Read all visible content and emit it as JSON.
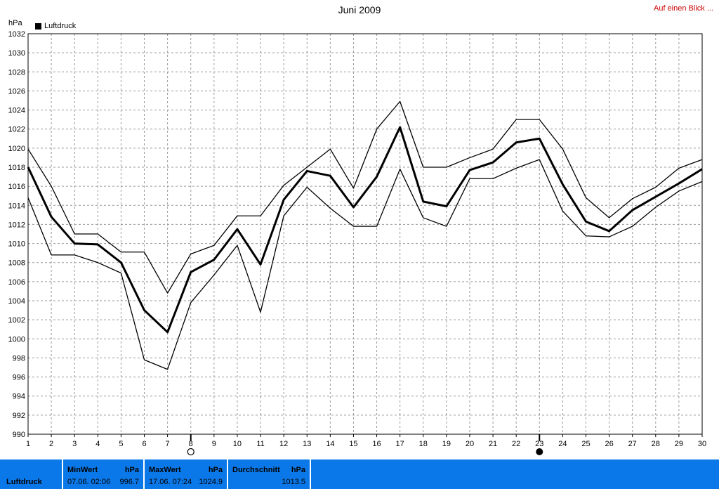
{
  "title": "Juni 2009",
  "link": "Auf einen Blick ...",
  "y_unit": "hPa",
  "legend_label": "Luftdruck",
  "chart_data": {
    "type": "line",
    "title": "Juni 2009",
    "ylabel": "hPa",
    "xlabel": "",
    "ylim": [
      990,
      1032
    ],
    "yticks": [
      990,
      992,
      994,
      996,
      998,
      1000,
      1002,
      1004,
      1006,
      1008,
      1010,
      1012,
      1014,
      1016,
      1018,
      1020,
      1022,
      1024,
      1026,
      1028,
      1030,
      1032
    ],
    "x": [
      1,
      2,
      3,
      4,
      5,
      6,
      7,
      8,
      9,
      10,
      11,
      12,
      13,
      14,
      15,
      16,
      17,
      18,
      19,
      20,
      21,
      22,
      23,
      24,
      25,
      26,
      27,
      28,
      29,
      30
    ],
    "grid": true,
    "legend": "top-left",
    "series": [
      {
        "name": "Luftdruck",
        "role": "mean",
        "values": [
          1018.0,
          1012.8,
          1010.0,
          1009.9,
          1008.0,
          1003.0,
          1000.7,
          1007.0,
          1008.3,
          1011.5,
          1007.8,
          1014.6,
          1017.6,
          1017.1,
          1013.8,
          1017.0,
          1022.2,
          1014.4,
          1013.9,
          1017.7,
          1018.5,
          1020.6,
          1021.0,
          1016.2,
          1012.3,
          1011.3,
          1013.5,
          1014.9,
          1016.3,
          1017.8
        ]
      },
      {
        "role": "max",
        "values": [
          1019.9,
          1016.0,
          1011.0,
          1011.0,
          1009.1,
          1009.1,
          1004.8,
          1008.9,
          1009.8,
          1012.9,
          1012.9,
          1016.1,
          1018.0,
          1019.9,
          1015.8,
          1022.0,
          1024.9,
          1018.0,
          1018.0,
          1019.0,
          1019.9,
          1023.0,
          1023.0,
          1019.9,
          1014.8,
          1012.7,
          1014.7,
          1015.9,
          1017.9,
          1018.8
        ]
      },
      {
        "role": "min",
        "values": [
          1014.8,
          1008.8,
          1008.8,
          1008.0,
          1006.9,
          997.8,
          996.8,
          1003.8,
          1006.7,
          1009.8,
          1002.8,
          1012.9,
          1015.9,
          1013.7,
          1011.8,
          1011.8,
          1017.8,
          1012.7,
          1011.8,
          1016.8,
          1016.8,
          1017.9,
          1018.8,
          1013.4,
          1010.8,
          1010.7,
          1011.8,
          1013.8,
          1015.5,
          1016.5
        ]
      }
    ],
    "markers": [
      {
        "x": 8,
        "type": "open-circle"
      },
      {
        "x": 23,
        "type": "filled-circle"
      }
    ]
  },
  "footer": {
    "name": "Luftdruck",
    "min": {
      "label": "MinWert",
      "unit": "hPa",
      "date": "07.06.  02:06",
      "value": "996.7"
    },
    "max": {
      "label": "MaxWert",
      "unit": "hPa",
      "date": "17.06.  07:24",
      "value": "1024.9"
    },
    "avg": {
      "label": "Durchschnitt",
      "unit": "hPa",
      "value": "1013.5"
    }
  },
  "colors": {
    "footer_bg": "#0a78e8",
    "link": "#cc0000",
    "line": "#000000",
    "grid": "#999999"
  }
}
